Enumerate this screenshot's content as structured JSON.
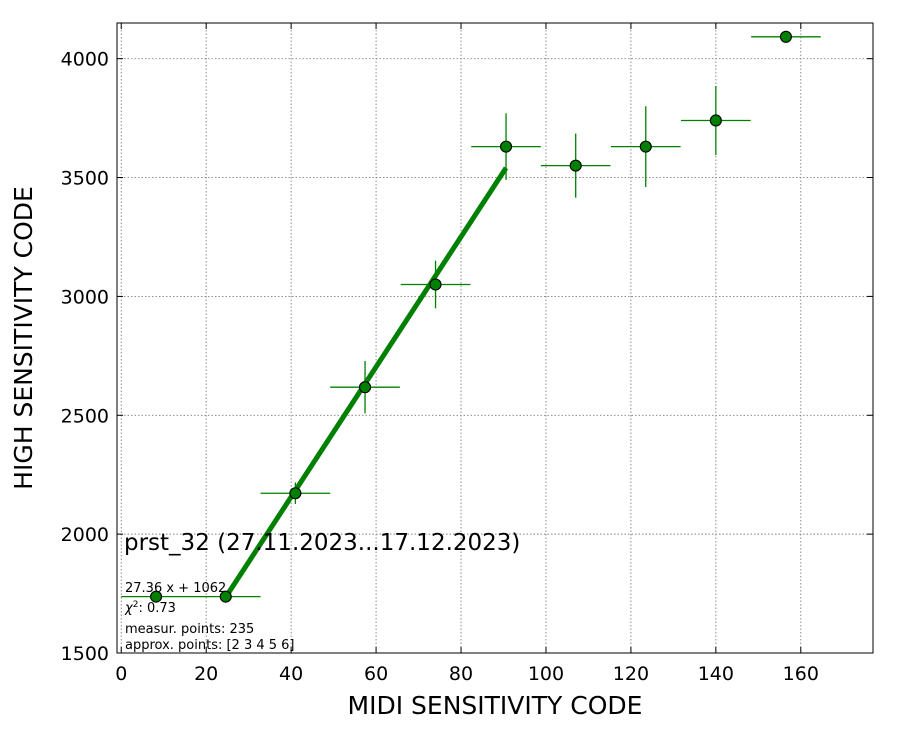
{
  "chart_data": {
    "type": "scatter",
    "title": "",
    "xlabel": "MIDI SENSITIVITY CODE",
    "ylabel": "HIGH SENSITIVITY CODE",
    "xlim": [
      -1,
      177
    ],
    "ylim": [
      1500,
      4150
    ],
    "xticks": [
      0,
      20,
      40,
      60,
      80,
      100,
      120,
      140,
      160
    ],
    "yticks": [
      1500,
      2000,
      2500,
      3000,
      3500,
      4000
    ],
    "grid": true,
    "grid_style": "dotted",
    "colors": {
      "points": "#008000",
      "marker_edge": "#000000",
      "fit": "#008000"
    },
    "points": [
      {
        "x": 8.2,
        "y": 1737,
        "xerr": 8.2,
        "yerr": 0
      },
      {
        "x": 24.6,
        "y": 1737,
        "xerr": 8.2,
        "yerr": 0
      },
      {
        "x": 41.0,
        "y": 2172,
        "xerr": 8.2,
        "yerr": 45
      },
      {
        "x": 57.4,
        "y": 2618,
        "xerr": 8.2,
        "yerr": 110
      },
      {
        "x": 74.0,
        "y": 3050,
        "xerr": 8.2,
        "yerr": 100
      },
      {
        "x": 90.6,
        "y": 3630,
        "xerr": 8.2,
        "yerr": 140
      },
      {
        "x": 107.0,
        "y": 3550,
        "xerr": 8.2,
        "yerr": 135
      },
      {
        "x": 123.5,
        "y": 3630,
        "xerr": 8.2,
        "yerr": 170
      },
      {
        "x": 140.0,
        "y": 3740,
        "xerr": 8.2,
        "yerr": 145
      },
      {
        "x": 156.5,
        "y": 4092,
        "xerr": 8.2,
        "yerr": 0
      }
    ],
    "fit": {
      "slope": 27.36,
      "intercept": 1062,
      "x_range": [
        24.6,
        90.6
      ]
    },
    "annotations": {
      "heading": "prst_32 (27.11.2023...17.12.2023)",
      "fit_equation": "27.36 x + 1062",
      "chi2_symbol": "χ",
      "chi2_power": "2",
      "chi2_value": ": 0.73",
      "measured_points": "measur. points: 235",
      "approx_points": "approx. points: [2 3 4 5 6]"
    }
  }
}
